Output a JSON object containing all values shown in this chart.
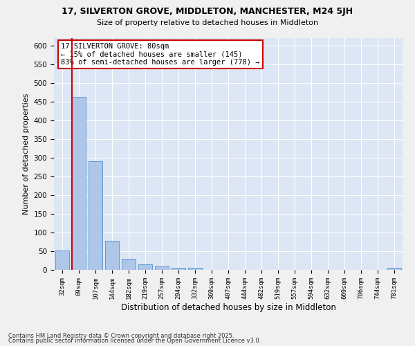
{
  "title1": "17, SILVERTON GROVE, MIDDLETON, MANCHESTER, M24 5JH",
  "title2": "Size of property relative to detached houses in Middleton",
  "xlabel": "Distribution of detached houses by size in Middleton",
  "ylabel": "Number of detached properties",
  "categories": [
    "32sqm",
    "69sqm",
    "107sqm",
    "144sqm",
    "182sqm",
    "219sqm",
    "257sqm",
    "294sqm",
    "332sqm",
    "369sqm",
    "407sqm",
    "444sqm",
    "482sqm",
    "519sqm",
    "557sqm",
    "594sqm",
    "632sqm",
    "669sqm",
    "706sqm",
    "744sqm",
    "781sqm"
  ],
  "values": [
    52,
    462,
    290,
    77,
    30,
    15,
    10,
    5,
    5,
    0,
    0,
    0,
    0,
    0,
    0,
    0,
    0,
    0,
    0,
    0,
    5
  ],
  "bar_color": "#aec6e8",
  "bar_edge_color": "#5b9bd5",
  "background_color": "#dce6f5",
  "grid_color": "#ffffff",
  "red_line_x": 0.575,
  "annotation_text": "17 SILVERTON GROVE: 80sqm\n← 15% of detached houses are smaller (145)\n83% of semi-detached houses are larger (778) →",
  "annotation_box_color": "#ffffff",
  "annotation_box_edge": "#cc0000",
  "red_line_color": "#cc0000",
  "footer1": "Contains HM Land Registry data © Crown copyright and database right 2025.",
  "footer2": "Contains public sector information licensed under the Open Government Licence v3.0.",
  "ylim": [
    0,
    620
  ],
  "yticks": [
    0,
    50,
    100,
    150,
    200,
    250,
    300,
    350,
    400,
    450,
    500,
    550,
    600
  ]
}
